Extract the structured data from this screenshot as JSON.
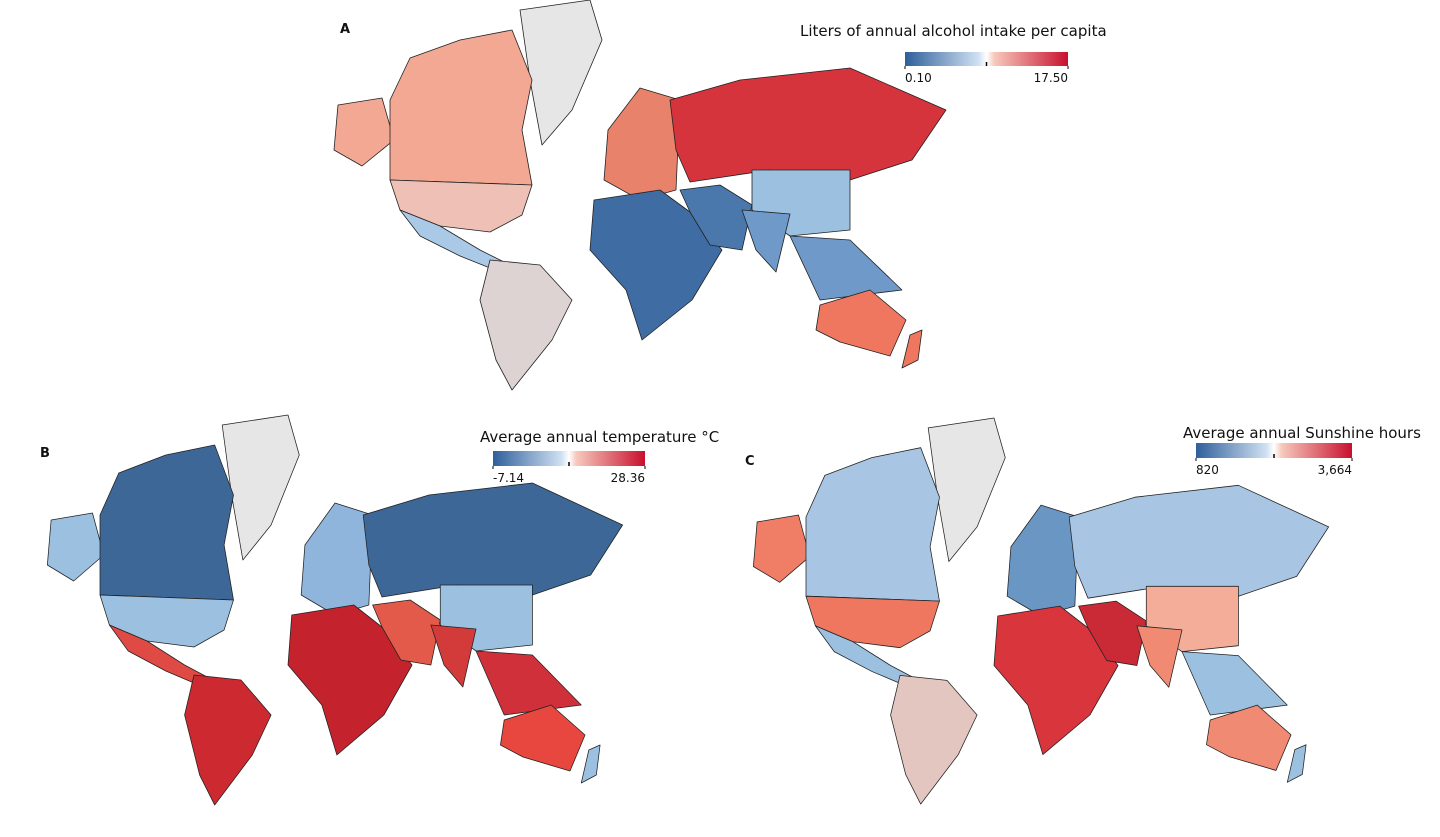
{
  "panels": [
    {
      "label": "A",
      "legend": {
        "title": "Liters of annual alcohol intake per capita",
        "min": {
          "value": 0.1,
          "label": "0.10"
        },
        "max": {
          "value": 17.5,
          "label": "17.50"
        }
      }
    },
    {
      "label": "B",
      "legend": {
        "title": "Average annual temperature °C",
        "min": -7.14,
        "max": 28.36
      }
    },
    {
      "label": "C",
      "legend": {
        "title": "Average annual Sunshine hours",
        "min": 820,
        "max": {
          "value": 3664,
          "label": "3,664"
        }
      }
    }
  ]
}
